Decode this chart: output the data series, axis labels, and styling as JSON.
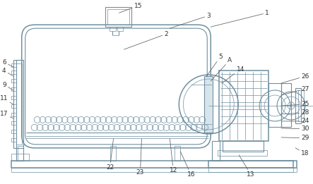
{
  "bg_color": "#ffffff",
  "line_color": "#7090a0",
  "label_color": "#303030",
  "label_fontsize": 6.5,
  "label_arrow_color": "#606060"
}
